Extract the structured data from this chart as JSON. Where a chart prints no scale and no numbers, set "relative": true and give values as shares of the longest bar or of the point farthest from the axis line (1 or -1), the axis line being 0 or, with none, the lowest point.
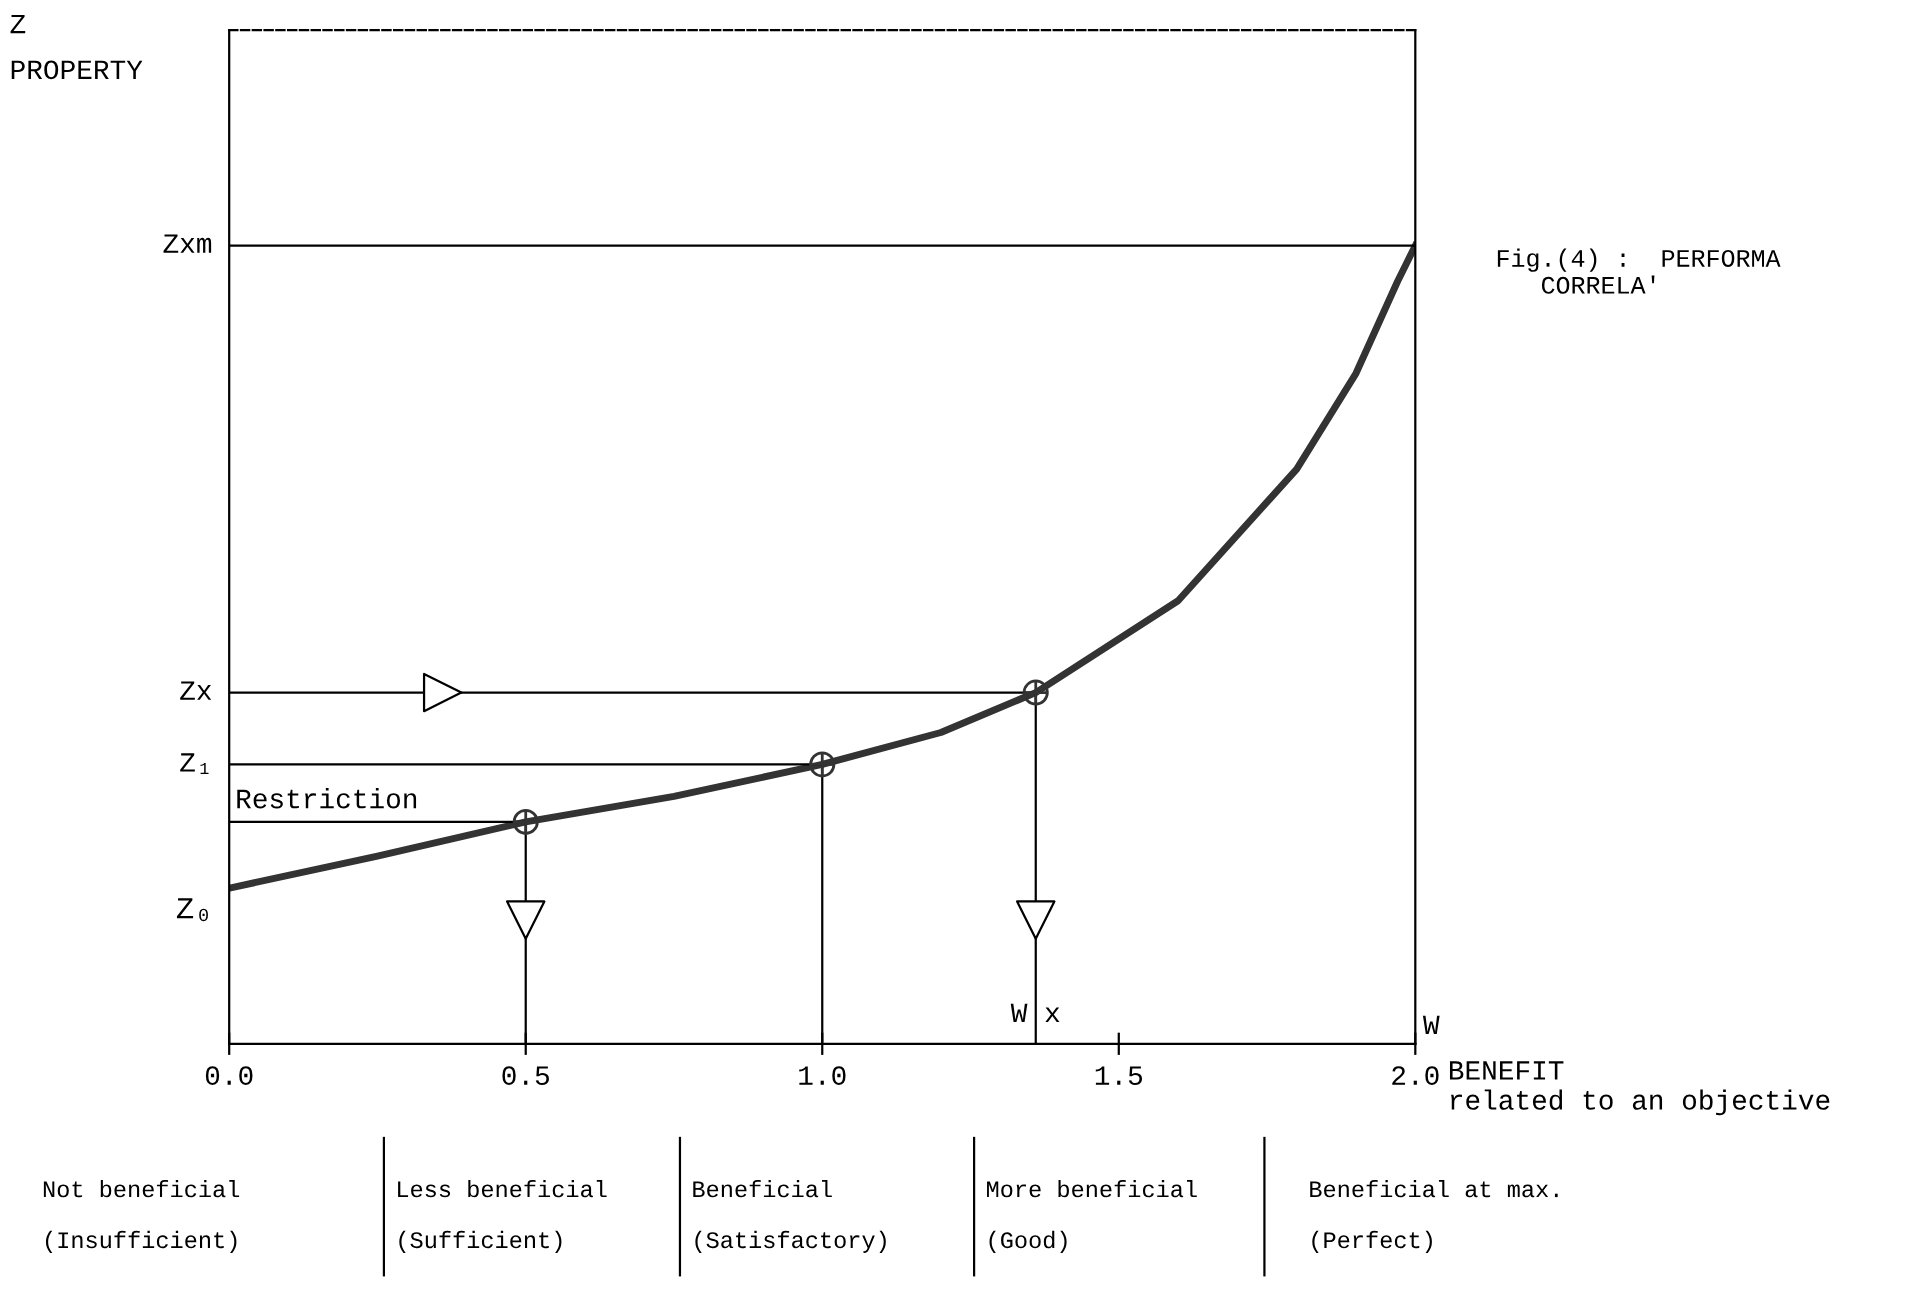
{
  "chart_data": {
    "type": "line",
    "relative": true,
    "xlabel": "BENEFIT\nrelated to an objective",
    "x": [
      0.0,
      0.25,
      0.5,
      0.75,
      1.0,
      1.2,
      1.36,
      1.6,
      1.8,
      1.9,
      1.97,
      2.0
    ],
    "series": [
      {
        "color": "#333333",
        "values": [
          0.195,
          0.235,
          0.278,
          0.31,
          0.35,
          0.39,
          0.44,
          0.555,
          0.72,
          0.84,
          0.955,
          1.0
        ]
      },
      {
        "type": "scatter",
        "color": "#333333",
        "marker": "circle",
        "x": [
          0.5,
          1.0,
          1.36
        ],
        "values": [
          0.278,
          0.35,
          0.44
        ]
      }
    ],
    "xlim": [
      0.0,
      2.0
    ],
    "xticks": [
      {
        "value": 0.0,
        "label": "0.0"
      },
      0.5,
      {
        "value": 1.0,
        "label": "1.0"
      },
      1.5,
      {
        "value": 2.0,
        "label": "2.0"
      }
    ],
    "ref_lines": [
      {
        "axis": "y",
        "value": 1.0,
        "label": "Zxm"
      },
      {
        "axis": "y",
        "value": 0.44,
        "label": "Zx"
      },
      {
        "axis": "y",
        "value": 0.35,
        "label": "Z₁"
      },
      {
        "axis": "y",
        "value": 0.278,
        "label": "Restriction"
      },
      {
        "axis": "x",
        "value": 0.5
      },
      {
        "axis": "x",
        "value": 1.0
      },
      {
        "axis": "x",
        "value": 1.36,
        "label": "W x"
      }
    ],
    "annotations": [
      {
        "text": "Z₀",
        "x": 0.0,
        "y": 0.195
      },
      "Z",
      "W",
      "Fig.(4) :  PERFORMA\n   CORRELA'",
      "PROPERTY",
      "Not beneficial\n\n(Insufficient)",
      "Less beneficial\n\n(Sufficient)",
      "Beneficial\n\n(Satisfactory)",
      "More beneficial\n\n(Good)",
      "Beneficial at max.\n\n(Perfect)"
    ],
    "grid": false
  }
}
